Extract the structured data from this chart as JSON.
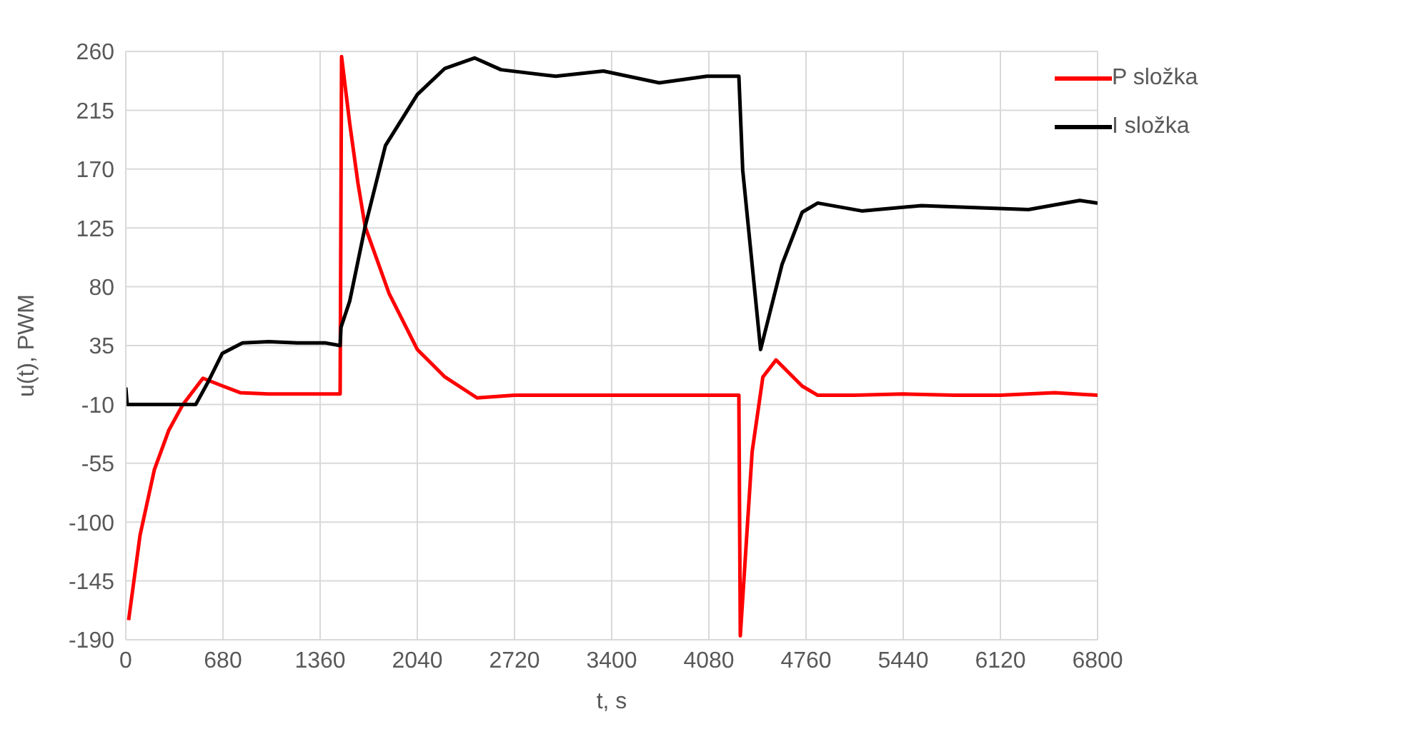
{
  "chart_data": {
    "type": "line",
    "xlabel": "t, s",
    "ylabel": "u(t), PWM",
    "xlim": [
      0,
      6800
    ],
    "xticks": [
      0,
      680,
      1360,
      2040,
      2720,
      3400,
      4080,
      4760,
      5440,
      6120,
      6800
    ],
    "ylim": [
      -190,
      260
    ],
    "yticks": [
      -190,
      -145,
      -100,
      -55,
      -10,
      35,
      80,
      125,
      170,
      215,
      260
    ],
    "grid": true,
    "legend": "top right",
    "marker": "none",
    "line_style": "solid",
    "series": [
      {
        "name": "P složka",
        "color": "#ff0000",
        "x": [
          20,
          100,
          200,
          300,
          400,
          540,
          680,
          800,
          1000,
          1200,
          1400,
          1500,
          1510,
          1567,
          1625,
          1675,
          1842,
          2040,
          2233,
          2458,
          2720,
          3000,
          3400,
          3800,
          4100,
          4290,
          4300,
          4383,
          4458,
          4550,
          4733,
          4842,
          5100,
          5440,
          5800,
          6120,
          6500,
          6800
        ],
        "values": [
          -175,
          -110,
          -60,
          -30,
          -10,
          10,
          4,
          -1,
          -2,
          -2,
          -2,
          -2,
          256,
          205,
          159,
          126,
          75,
          32,
          11,
          -5,
          -3,
          -3,
          -3,
          -3,
          -3,
          -3,
          -187,
          -46,
          11,
          24,
          4,
          -3,
          -3,
          -2,
          -3,
          -3,
          -1,
          -3
        ]
      },
      {
        "name": "I složka",
        "color": "#000000",
        "x": [
          0,
          10,
          200,
          490,
          580,
          675,
          817,
          1000,
          1200,
          1400,
          1500,
          1506,
          1567,
          1675,
          1817,
          2040,
          2233,
          2442,
          2625,
          3008,
          3342,
          3733,
          4067,
          4290,
          4317,
          4442,
          4592,
          4733,
          4842,
          5150,
          5567,
          6317,
          6675,
          6800
        ],
        "values": [
          3,
          -10,
          -10,
          -10,
          8,
          29,
          37,
          38,
          37,
          37,
          35,
          49,
          69,
          126,
          188,
          227,
          247,
          255,
          246,
          241,
          245,
          236,
          241,
          241,
          169,
          32,
          97,
          137,
          144,
          138,
          142,
          139,
          146,
          144
        ]
      }
    ]
  }
}
